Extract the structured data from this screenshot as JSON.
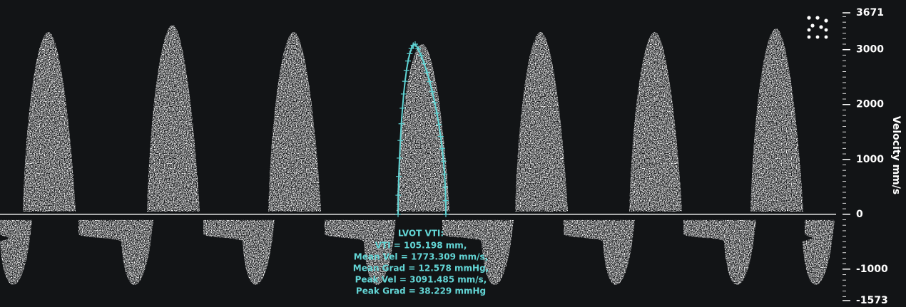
{
  "axis": {
    "label": "Velocity mm/s",
    "ticks": [
      3671,
      3000,
      2000,
      1000,
      0,
      -1000,
      -1573
    ]
  },
  "measurement": {
    "title": "LVOT VTI:",
    "lines": [
      "VTI = 105.198 mm,",
      "Mean Vel = 1773.309 mm/s,",
      "Mean Grad = 12.578 mmHg,",
      "Peak Vel = 3091.485 mm/s,",
      "Peak Grad = 38.229 mmHg"
    ]
  }
}
